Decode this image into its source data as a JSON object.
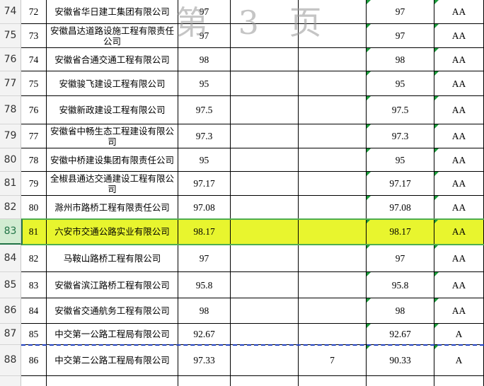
{
  "watermark": "第 3 页",
  "rows": [
    {
      "row": 74,
      "seq": 72,
      "name": "安徽省华日建工集团有限公司",
      "score": 97,
      "final": 97,
      "grade": "AA"
    },
    {
      "row": 75,
      "seq": 73,
      "name": "安徽昌达道路设施工程有限责任公司",
      "score": 97,
      "final": 97,
      "grade": "AA"
    },
    {
      "row": 76,
      "seq": 74,
      "name": "安徽省合通交通工程有限公司",
      "score": 98,
      "final": 98,
      "grade": "AA"
    },
    {
      "row": 77,
      "seq": 75,
      "name": "安徽骏飞建设工程有限公司",
      "score": 95,
      "final": 95,
      "grade": "AA"
    },
    {
      "row": 78,
      "seq": 76,
      "name": "安徽新政建设工程有限公司",
      "score": 97.5,
      "final": 97.5,
      "grade": "AA"
    },
    {
      "row": 79,
      "seq": 77,
      "name": "安徽省中畅生态工程建设有限公司",
      "score": 97.3,
      "final": 97.3,
      "grade": "AA"
    },
    {
      "row": 80,
      "seq": 78,
      "name": "安徽中桥建设集团有限责任公司",
      "score": 95,
      "final": 95,
      "grade": "AA"
    },
    {
      "row": 81,
      "seq": 79,
      "name": "全椒县通达交通建设工程有限公司",
      "score": 97.17,
      "final": 97.17,
      "grade": "AA"
    },
    {
      "row": 82,
      "seq": 80,
      "name": "滁州市路桥工程有限责任公司",
      "score": 97.08,
      "final": 97.08,
      "grade": "AA"
    },
    {
      "row": 83,
      "seq": 81,
      "name": "六安市交通公路实业有限公司",
      "score": 98.17,
      "final": 98.17,
      "grade": "AA"
    },
    {
      "row": 84,
      "seq": 82,
      "name": "马鞍山路桥工程有限公司",
      "score": 97,
      "final": 97,
      "grade": "AA"
    },
    {
      "row": 85,
      "seq": 83,
      "name": "安徽省滨江路桥工程有限公司",
      "score": 95.8,
      "final": 95.8,
      "grade": "AA"
    },
    {
      "row": 86,
      "seq": 84,
      "name": "安徽省交通航务工程有限公司",
      "score": 98,
      "final": 98,
      "grade": "AA"
    },
    {
      "row": 87,
      "seq": 85,
      "name": "中交第一公路工程局有限公司",
      "score": 92.67,
      "final": 92.67,
      "grade": "A"
    },
    {
      "row": 88,
      "seq": 86,
      "name": "中交第二公路工程局有限公司",
      "score": 97.33,
      "deduction": 7,
      "final": 90.33,
      "grade": "A"
    }
  ]
}
